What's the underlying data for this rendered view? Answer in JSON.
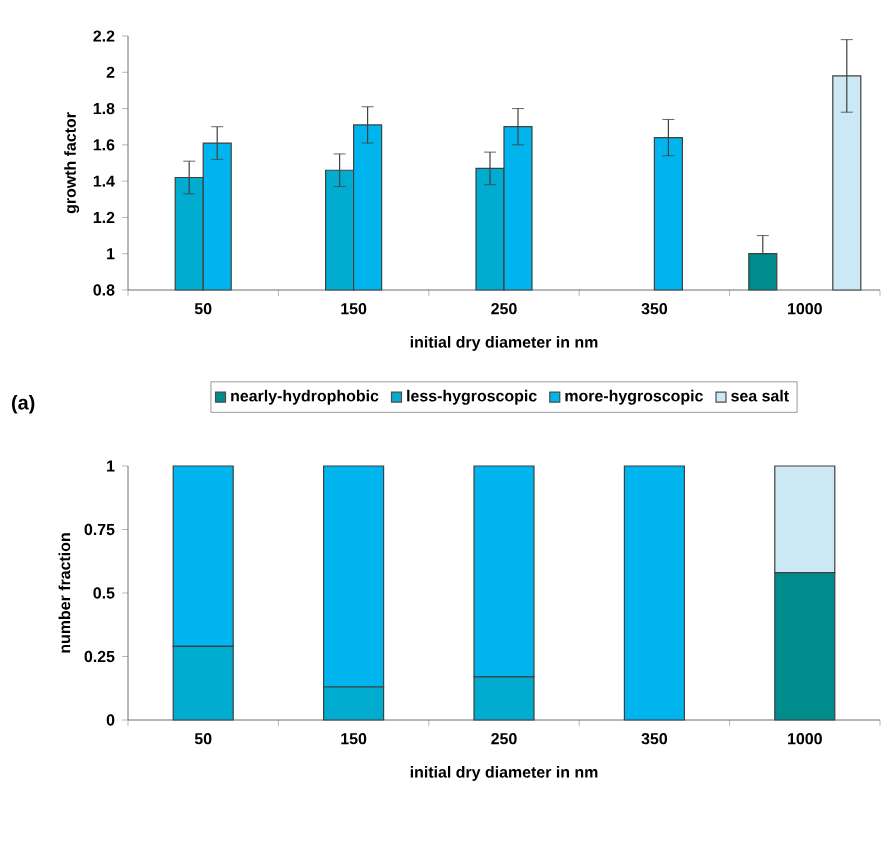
{
  "chart_data": [
    {
      "type": "bar",
      "ylabel": "growth factor",
      "xlabel": "initial dry diameter in nm",
      "categories": [
        "50",
        "150",
        "250",
        "350",
        "1000"
      ],
      "series": [
        {
          "name": "nearly-hydrophobic",
          "color": "#008c8c",
          "values": [
            null,
            null,
            null,
            null,
            1.0
          ],
          "errors": [
            null,
            null,
            null,
            null,
            [
              1.0,
              1.1
            ]
          ]
        },
        {
          "name": "less-hygroscopic",
          "color": "#00acd0",
          "values": [
            1.42,
            1.46,
            1.47,
            null,
            null
          ],
          "errors": [
            0.09,
            0.09,
            0.09,
            null,
            null
          ]
        },
        {
          "name": "more-hygroscopic",
          "color": "#00b5ee",
          "values": [
            1.61,
            1.71,
            1.7,
            1.64,
            null
          ],
          "errors": [
            0.09,
            0.1,
            0.1,
            0.1,
            null
          ]
        },
        {
          "name": "sea salt",
          "color": "#cce8f5",
          "values": [
            null,
            null,
            null,
            null,
            1.98
          ],
          "errors": [
            null,
            null,
            null,
            null,
            0.2
          ]
        }
      ],
      "ylim": [
        0.8,
        2.2
      ],
      "yticks": [
        0.8,
        1,
        1.2,
        1.4,
        1.6,
        1.8,
        2,
        2.2
      ],
      "grid": false,
      "legend": "bottom",
      "annotations": [
        "(a)"
      ]
    },
    {
      "type": "bar",
      "stacked": true,
      "ylabel": "number fraction",
      "xlabel": "initial dry diameter in nm",
      "categories": [
        "50",
        "150",
        "250",
        "350",
        "1000"
      ],
      "series": [
        {
          "color": "#008c8c",
          "values": [
            null,
            null,
            null,
            null,
            0.58
          ]
        },
        {
          "color": "#00acd0",
          "values": [
            0.29,
            0.13,
            0.17,
            null,
            null
          ]
        },
        {
          "color": "#00b5ee",
          "values": [
            0.71,
            0.87,
            0.83,
            1,
            null
          ]
        },
        {
          "color": "#cce8f5",
          "values": [
            null,
            null,
            null,
            null,
            0.42
          ]
        }
      ],
      "ylim": [
        0,
        1
      ],
      "yticks": [
        0,
        0.25,
        0.5,
        0.75,
        1
      ],
      "grid": false,
      "legend": false
    }
  ]
}
